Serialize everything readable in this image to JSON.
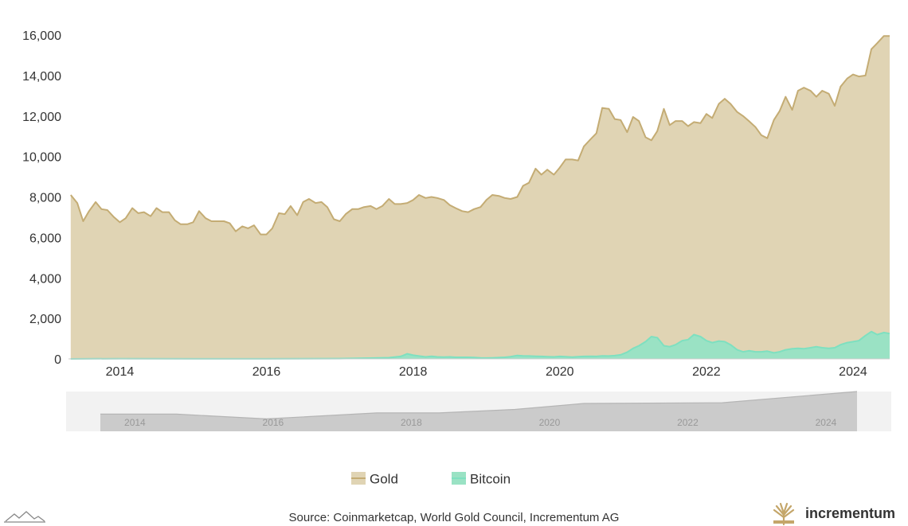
{
  "chart_data": {
    "type": "area",
    "ylim": [
      0,
      16000
    ],
    "y_ticks": [
      "0",
      "2,000",
      "4,000",
      "6,000",
      "8,000",
      "10,000",
      "12,000",
      "14,000",
      "16,000"
    ],
    "y_tick_values": [
      0,
      2000,
      4000,
      6000,
      8000,
      10000,
      12000,
      14000,
      16000
    ],
    "x_range": [
      2013.3,
      2024.5
    ],
    "x_ticks": [
      "2014",
      "2016",
      "2018",
      "2020",
      "2022",
      "2024"
    ],
    "x_tick_values": [
      2014,
      2016,
      2018,
      2020,
      2022,
      2024
    ],
    "grid": false,
    "legend_placement": "bottom-center",
    "series": [
      {
        "name": "Gold",
        "color": "#c4ac74",
        "fill": "#e0d4b4",
        "points": [
          [
            2013.33,
            8100
          ],
          [
            2013.42,
            7700
          ],
          [
            2013.5,
            6800
          ],
          [
            2013.58,
            7300
          ],
          [
            2013.67,
            7750
          ],
          [
            2013.75,
            7400
          ],
          [
            2013.83,
            7350
          ],
          [
            2013.92,
            7000
          ],
          [
            2014.0,
            6750
          ],
          [
            2014.08,
            6950
          ],
          [
            2014.17,
            7450
          ],
          [
            2014.25,
            7200
          ],
          [
            2014.33,
            7250
          ],
          [
            2014.42,
            7050
          ],
          [
            2014.5,
            7450
          ],
          [
            2014.58,
            7250
          ],
          [
            2014.67,
            7250
          ],
          [
            2014.75,
            6850
          ],
          [
            2014.83,
            6650
          ],
          [
            2014.92,
            6650
          ],
          [
            2015.0,
            6750
          ],
          [
            2015.08,
            7300
          ],
          [
            2015.17,
            6950
          ],
          [
            2015.25,
            6800
          ],
          [
            2015.33,
            6800
          ],
          [
            2015.42,
            6800
          ],
          [
            2015.5,
            6700
          ],
          [
            2015.58,
            6300
          ],
          [
            2015.67,
            6550
          ],
          [
            2015.75,
            6450
          ],
          [
            2015.83,
            6600
          ],
          [
            2015.92,
            6150
          ],
          [
            2016.0,
            6150
          ],
          [
            2016.08,
            6450
          ],
          [
            2016.17,
            7200
          ],
          [
            2016.25,
            7150
          ],
          [
            2016.33,
            7550
          ],
          [
            2016.42,
            7100
          ],
          [
            2016.5,
            7750
          ],
          [
            2016.58,
            7900
          ],
          [
            2016.67,
            7700
          ],
          [
            2016.75,
            7750
          ],
          [
            2016.83,
            7500
          ],
          [
            2016.92,
            6900
          ],
          [
            2017.0,
            6800
          ],
          [
            2017.08,
            7150
          ],
          [
            2017.17,
            7400
          ],
          [
            2017.25,
            7400
          ],
          [
            2017.33,
            7500
          ],
          [
            2017.42,
            7550
          ],
          [
            2017.5,
            7400
          ],
          [
            2017.58,
            7550
          ],
          [
            2017.67,
            7900
          ],
          [
            2017.75,
            7650
          ],
          [
            2017.83,
            7650
          ],
          [
            2017.92,
            7700
          ],
          [
            2018.0,
            7850
          ],
          [
            2018.08,
            8100
          ],
          [
            2018.17,
            7950
          ],
          [
            2018.25,
            8000
          ],
          [
            2018.33,
            7950
          ],
          [
            2018.42,
            7850
          ],
          [
            2018.5,
            7600
          ],
          [
            2018.58,
            7450
          ],
          [
            2018.67,
            7300
          ],
          [
            2018.75,
            7250
          ],
          [
            2018.83,
            7400
          ],
          [
            2018.92,
            7500
          ],
          [
            2019.0,
            7850
          ],
          [
            2019.08,
            8100
          ],
          [
            2019.17,
            8050
          ],
          [
            2019.25,
            7950
          ],
          [
            2019.33,
            7900
          ],
          [
            2019.42,
            8000
          ],
          [
            2019.5,
            8550
          ],
          [
            2019.58,
            8700
          ],
          [
            2019.67,
            9400
          ],
          [
            2019.75,
            9100
          ],
          [
            2019.83,
            9350
          ],
          [
            2019.92,
            9100
          ],
          [
            2020.0,
            9450
          ],
          [
            2020.08,
            9850
          ],
          [
            2020.17,
            9850
          ],
          [
            2020.25,
            9800
          ],
          [
            2020.33,
            10500
          ],
          [
            2020.42,
            10850
          ],
          [
            2020.5,
            11150
          ],
          [
            2020.58,
            12400
          ],
          [
            2020.67,
            12350
          ],
          [
            2020.75,
            11850
          ],
          [
            2020.83,
            11800
          ],
          [
            2020.92,
            11200
          ],
          [
            2021.0,
            11950
          ],
          [
            2021.08,
            11750
          ],
          [
            2021.17,
            10950
          ],
          [
            2021.25,
            10800
          ],
          [
            2021.33,
            11250
          ],
          [
            2021.42,
            12350
          ],
          [
            2021.5,
            11550
          ],
          [
            2021.58,
            11750
          ],
          [
            2021.67,
            11750
          ],
          [
            2021.75,
            11500
          ],
          [
            2021.83,
            11700
          ],
          [
            2021.92,
            11650
          ],
          [
            2022.0,
            12100
          ],
          [
            2022.08,
            11900
          ],
          [
            2022.17,
            12600
          ],
          [
            2022.25,
            12850
          ],
          [
            2022.33,
            12600
          ],
          [
            2022.42,
            12200
          ],
          [
            2022.5,
            12000
          ],
          [
            2022.58,
            11750
          ],
          [
            2022.67,
            11450
          ],
          [
            2022.75,
            11050
          ],
          [
            2022.83,
            10900
          ],
          [
            2022.92,
            11800
          ],
          [
            2023.0,
            12250
          ],
          [
            2023.08,
            12950
          ],
          [
            2023.17,
            12300
          ],
          [
            2023.25,
            13250
          ],
          [
            2023.33,
            13400
          ],
          [
            2023.42,
            13250
          ],
          [
            2023.5,
            12950
          ],
          [
            2023.58,
            13250
          ],
          [
            2023.67,
            13100
          ],
          [
            2023.75,
            12500
          ],
          [
            2023.83,
            13450
          ],
          [
            2023.92,
            13850
          ],
          [
            2024.0,
            14050
          ],
          [
            2024.08,
            13950
          ],
          [
            2024.17,
            14000
          ],
          [
            2024.25,
            15300
          ],
          [
            2024.33,
            15600
          ],
          [
            2024.42,
            15950
          ],
          [
            2024.5,
            15950
          ]
        ]
      },
      {
        "name": "Bitcoin",
        "color": "#7ee0c0",
        "fill": "#9ae2c4",
        "points": [
          [
            2013.33,
            0
          ],
          [
            2014.0,
            10
          ],
          [
            2015.0,
            5
          ],
          [
            2016.0,
            5
          ],
          [
            2016.5,
            10
          ],
          [
            2017.0,
            15
          ],
          [
            2017.42,
            40
          ],
          [
            2017.67,
            60
          ],
          [
            2017.83,
            120
          ],
          [
            2017.92,
            250
          ],
          [
            2018.0,
            180
          ],
          [
            2018.08,
            140
          ],
          [
            2018.17,
            100
          ],
          [
            2018.25,
            130
          ],
          [
            2018.33,
            100
          ],
          [
            2018.42,
            90
          ],
          [
            2018.5,
            100
          ],
          [
            2018.58,
            80
          ],
          [
            2018.67,
            80
          ],
          [
            2018.75,
            80
          ],
          [
            2018.83,
            70
          ],
          [
            2018.92,
            50
          ],
          [
            2019.0,
            45
          ],
          [
            2019.08,
            50
          ],
          [
            2019.25,
            80
          ],
          [
            2019.33,
            110
          ],
          [
            2019.42,
            170
          ],
          [
            2019.5,
            150
          ],
          [
            2019.58,
            140
          ],
          [
            2019.67,
            130
          ],
          [
            2019.75,
            120
          ],
          [
            2019.83,
            110
          ],
          [
            2019.92,
            100
          ],
          [
            2020.0,
            120
          ],
          [
            2020.08,
            110
          ],
          [
            2020.17,
            90
          ],
          [
            2020.25,
            110
          ],
          [
            2020.33,
            120
          ],
          [
            2020.42,
            130
          ],
          [
            2020.5,
            120
          ],
          [
            2020.58,
            150
          ],
          [
            2020.67,
            140
          ],
          [
            2020.75,
            160
          ],
          [
            2020.83,
            200
          ],
          [
            2020.92,
            330
          ],
          [
            2021.0,
            520
          ],
          [
            2021.08,
            650
          ],
          [
            2021.17,
            850
          ],
          [
            2021.25,
            1100
          ],
          [
            2021.33,
            1050
          ],
          [
            2021.42,
            650
          ],
          [
            2021.5,
            600
          ],
          [
            2021.58,
            700
          ],
          [
            2021.67,
            900
          ],
          [
            2021.75,
            950
          ],
          [
            2021.83,
            1200
          ],
          [
            2021.92,
            1100
          ],
          [
            2022.0,
            900
          ],
          [
            2022.08,
            800
          ],
          [
            2022.17,
            880
          ],
          [
            2022.25,
            850
          ],
          [
            2022.33,
            700
          ],
          [
            2022.42,
            450
          ],
          [
            2022.5,
            350
          ],
          [
            2022.58,
            400
          ],
          [
            2022.67,
            350
          ],
          [
            2022.75,
            350
          ],
          [
            2022.83,
            380
          ],
          [
            2022.92,
            300
          ],
          [
            2023.0,
            350
          ],
          [
            2023.08,
            450
          ],
          [
            2023.17,
            500
          ],
          [
            2023.25,
            520
          ],
          [
            2023.33,
            500
          ],
          [
            2023.42,
            550
          ],
          [
            2023.5,
            600
          ],
          [
            2023.58,
            550
          ],
          [
            2023.67,
            520
          ],
          [
            2023.75,
            550
          ],
          [
            2023.83,
            700
          ],
          [
            2023.92,
            800
          ],
          [
            2024.0,
            850
          ],
          [
            2024.08,
            900
          ],
          [
            2024.17,
            1150
          ],
          [
            2024.25,
            1350
          ],
          [
            2024.33,
            1200
          ],
          [
            2024.42,
            1300
          ],
          [
            2024.5,
            1250
          ]
        ]
      }
    ]
  },
  "navigator": {
    "labels": [
      "2014",
      "2016",
      "2018",
      "2020",
      "2022",
      "2024"
    ],
    "label_values": [
      2014,
      2016,
      2018,
      2020,
      2022,
      2024
    ],
    "x_range": [
      2013.5,
      2024.45
    ],
    "points": [
      [
        2013.5,
        6900
      ],
      [
        2014.6,
        6900
      ],
      [
        2015.9,
        5000
      ],
      [
        2017.5,
        7400
      ],
      [
        2018.4,
        7400
      ],
      [
        2019.5,
        8800
      ],
      [
        2020.5,
        11200
      ],
      [
        2022.5,
        11500
      ],
      [
        2024.45,
        16000
      ]
    ],
    "y_max": 16000
  },
  "legend": [
    {
      "label": "Gold",
      "color": "#c4ac74",
      "fill": "#e0d4b4"
    },
    {
      "label": "Bitcoin",
      "color": "#7ee0c0",
      "fill": "#9ae2c4"
    }
  ],
  "footer": {
    "source": "Source: Coinmarketcap, World Gold Council, Incrementum AG",
    "brand": "incrementum",
    "brand_icon": "tree-logo-icon",
    "corner_icon": "mountains-icon"
  }
}
